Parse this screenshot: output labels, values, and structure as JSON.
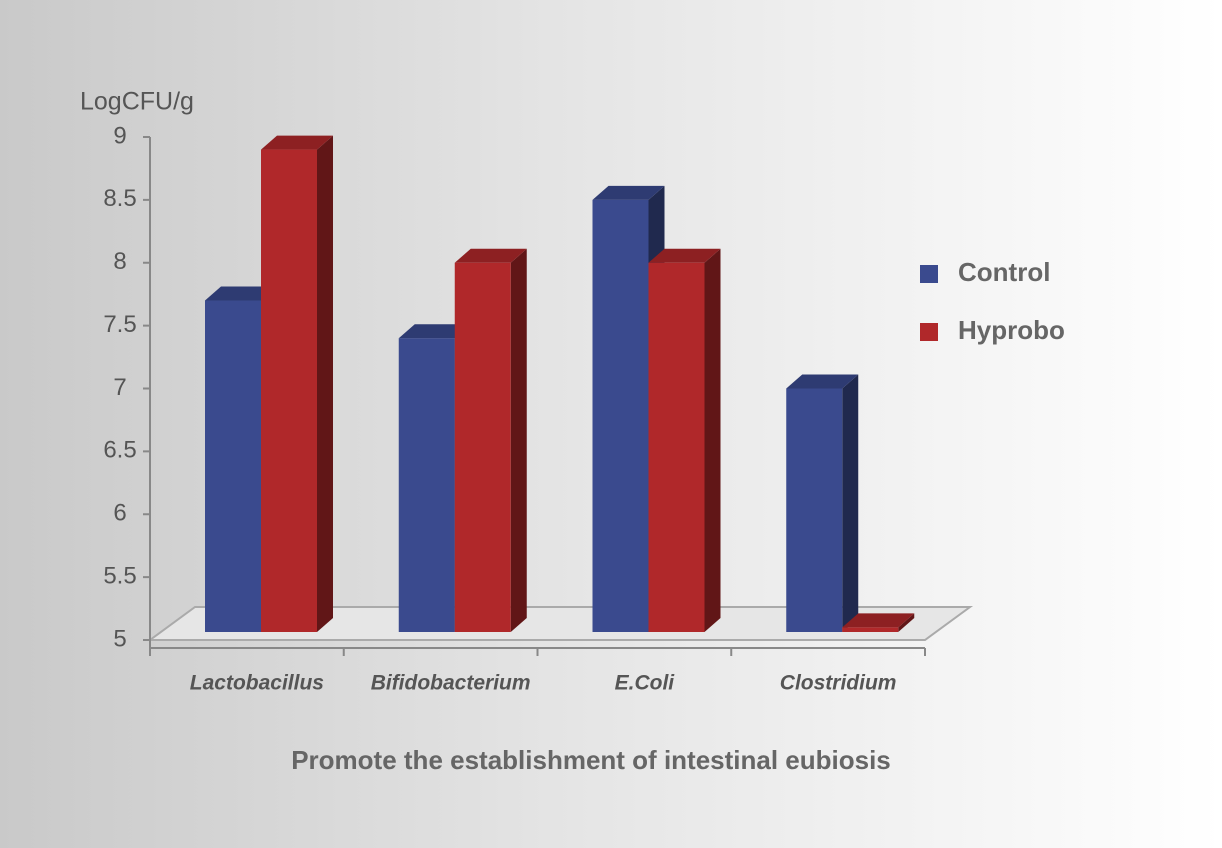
{
  "chart_data": {
    "type": "bar3d",
    "y_label": "LogCFU/g",
    "title": "Promote the establishment of intestinal eubiosis",
    "categories": [
      "Lactobacillus",
      "Bifidobacterium",
      "E.Coli",
      "Clostridium"
    ],
    "series": [
      {
        "name": "Control",
        "color": "#3a4a8e",
        "values": [
          7.7,
          7.4,
          8.5,
          7.0
        ]
      },
      {
        "name": "Hyprobo",
        "color": "#b0282a",
        "values": [
          8.9,
          8.0,
          8.0,
          5.1
        ]
      }
    ],
    "ylim": [
      5,
      9
    ],
    "yticks": [
      5,
      5.5,
      6,
      6.5,
      7,
      7.5,
      8,
      8.5,
      9
    ],
    "legend": "right"
  }
}
